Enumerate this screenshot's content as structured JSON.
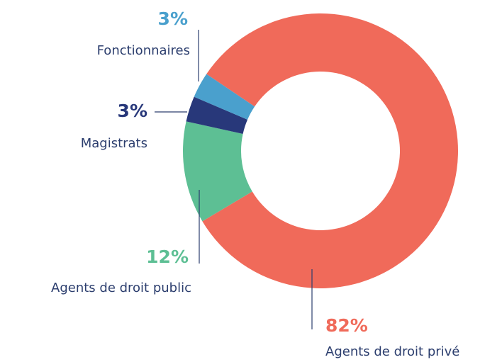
{
  "chart_data": {
    "type": "donut",
    "categories": [
      "Agents de droit privé",
      "Agents de droit public",
      "Magistrats",
      "Fonctionnaires"
    ],
    "values": [
      82,
      12,
      3,
      3
    ],
    "value_labels": [
      "82%",
      "12%",
      "3%",
      "3%"
    ],
    "colors": [
      "#f06a5a",
      "#5dbf94",
      "#28387a",
      "#4aa0cd"
    ]
  }
}
